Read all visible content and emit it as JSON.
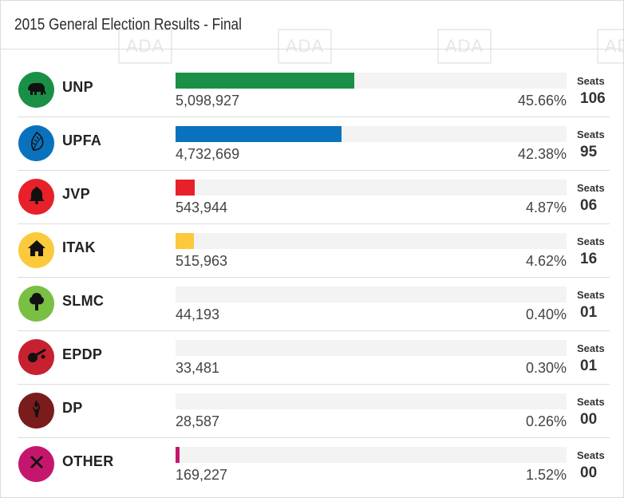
{
  "header": {
    "title": "2015 General Election Results - Final"
  },
  "watermark_text": "ADA",
  "chart_data": {
    "type": "bar",
    "orientation": "horizontal",
    "title": "2015 General Election Results - Final",
    "xlim": [
      0,
      100
    ],
    "seats_label": "Seats",
    "rows": [
      {
        "party": "UNP",
        "votes": "5,098,927",
        "percent": 45.66,
        "percent_label": "45.66%",
        "seats": "106",
        "color": "#1a9046",
        "icon": "elephant-icon"
      },
      {
        "party": "UPFA",
        "votes": "4,732,669",
        "percent": 42.38,
        "percent_label": "42.38%",
        "seats": "95",
        "color": "#0a72bd",
        "icon": "leaf-icon"
      },
      {
        "party": "JVP",
        "votes": "543,944",
        "percent": 4.87,
        "percent_label": "4.87%",
        "seats": "06",
        "color": "#e8202a",
        "icon": "bell-icon"
      },
      {
        "party": "ITAK",
        "votes": "515,963",
        "percent": 4.62,
        "percent_label": "4.62%",
        "seats": "16",
        "color": "#fcc93c",
        "icon": "house-icon"
      },
      {
        "party": "SLMC",
        "votes": "44,193",
        "percent": 0.4,
        "percent_label": "0.40%",
        "seats": "01",
        "color": "#78bf44",
        "icon": "tree-icon"
      },
      {
        "party": "EPDP",
        "votes": "33,481",
        "percent": 0.3,
        "percent_label": "0.30%",
        "seats": "01",
        "color": "#c72131",
        "icon": "veena-icon"
      },
      {
        "party": "DP",
        "votes": "28,587",
        "percent": 0.26,
        "percent_label": "0.26%",
        "seats": "00",
        "color": "#7a1c1c",
        "icon": "torch-icon"
      },
      {
        "party": "OTHER",
        "votes": "169,227",
        "percent": 1.52,
        "percent_label": "1.52%",
        "seats": "00",
        "color": "#c5166e",
        "icon": "cross-icon"
      }
    ]
  }
}
